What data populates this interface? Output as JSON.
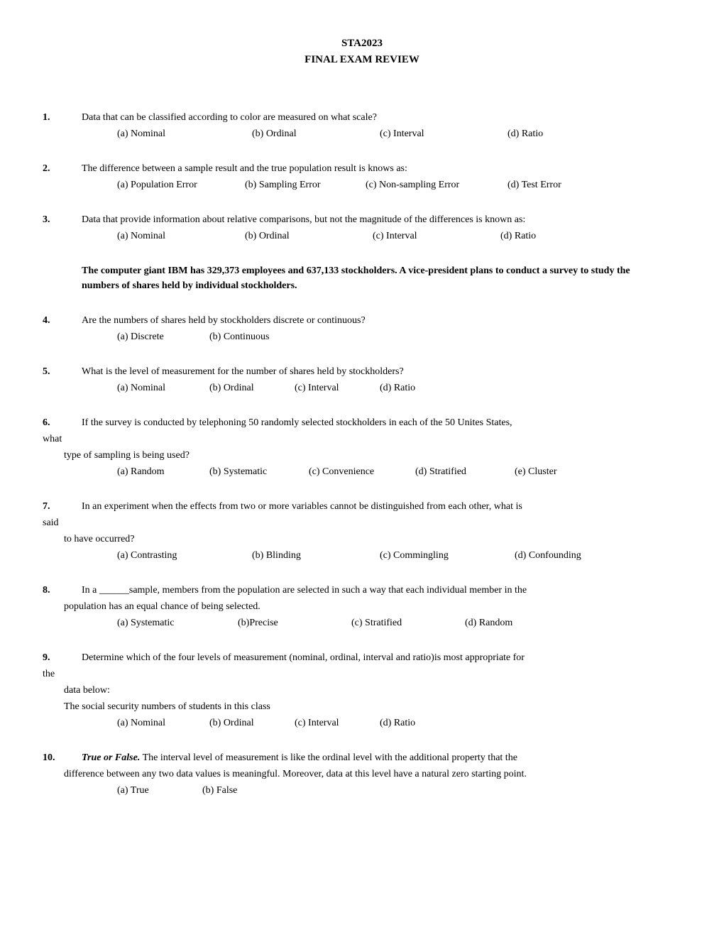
{
  "header": {
    "line1": "STA2023",
    "line2": "FINAL EXAM REVIEW"
  },
  "questions": [
    {
      "num": "1.",
      "text": "Data that can be classified according to color are measured on what scale?",
      "options": [
        "(a) Nominal",
        "(b) Ordinal",
        "(c) Interval",
        "(d) Ratio"
      ],
      "opt_widths": [
        190,
        180,
        180,
        100
      ]
    },
    {
      "num": "2.",
      "text": "The difference between a sample result and the true population result is knows as:",
      "options": [
        "(a) Population Error",
        "(b) Sampling Error",
        "(c) Non-sampling Error",
        "(d) Test Error"
      ],
      "opt_widths": [
        180,
        170,
        200,
        120
      ]
    },
    {
      "num": "3.",
      "text": "Data that provide information about relative comparisons, but not the magnitude of the differences is known as:",
      "options": [
        "(a)  Nominal",
        "(b) Ordinal",
        "(c) Interval",
        "(d) Ratio"
      ],
      "opt_widths": [
        180,
        180,
        180,
        100
      ]
    }
  ],
  "context": "The computer giant IBM has 329,373 employees and 637,133 stockholders. A vice-president plans to conduct a survey to study the numbers of shares held by individual stockholders.",
  "questions2": [
    {
      "num": "4.",
      "text": "Are the numbers of shares held by stockholders discrete or continuous?",
      "options": [
        "(a)  Discrete",
        "(b) Continuous"
      ],
      "opt_widths": [
        130,
        140
      ]
    },
    {
      "num": "5.",
      "text": "What is the level of measurement for the number of shares held by stockholders?",
      "options": [
        "(a)  Nominal",
        "(b) Ordinal",
        "(c) Interval",
        "(d) Ratio"
      ],
      "opt_widths": [
        130,
        120,
        120,
        100
      ]
    }
  ],
  "q6": {
    "num": "6.",
    "text1": "If the survey is conducted by telephoning 50 randomly selected stockholders in each of the 50 Unites States,",
    "text2": "what",
    "text3": "type of sampling is being used?",
    "options": [
      "(a)  Random",
      "(b) Systematic",
      "(c) Convenience",
      "(d) Stratified",
      "(e) Cluster"
    ],
    "opt_widths": [
      130,
      140,
      150,
      140,
      100
    ]
  },
  "q7": {
    "num": "7.",
    "text1": "In an experiment when the effects from two or more variables cannot be distinguished from each other, what is",
    "text2": "said",
    "text3": "to   have occurred?",
    "options": [
      "(a) Contrasting",
      "(b) Blinding",
      "(c) Commingling",
      "(d) Confounding"
    ],
    "opt_widths": [
      190,
      180,
      190,
      140
    ]
  },
  "q8": {
    "num": "8.",
    "text1": "In a ______sample, members from the population are selected in such a way that each individual member in the",
    "text2": "population has an equal chance of being selected.",
    "options": [
      "(a)  Systematic",
      "(b)Precise",
      "(c) Stratified",
      "(d) Random"
    ],
    "opt_widths": [
      170,
      160,
      160,
      120
    ]
  },
  "q9": {
    "num": "9.",
    "text1": "Determine which of the four levels of measurement (nominal, ordinal, interval and ratio)is most appropriate for",
    "text2": "the",
    "text3": "data below:",
    "text4": "The social security numbers of students in this class",
    "options": [
      "(a)  Nominal",
      "(b) Ordinal",
      "(c) Interval",
      "(d) Ratio"
    ],
    "opt_widths": [
      130,
      120,
      120,
      100
    ]
  },
  "q10": {
    "num": "10.",
    "prefix": "True or False.",
    "text1": "  The interval level of measurement is like the ordinal level with the additional property that the",
    "text2": "difference between any two data values is meaningful.  Moreover, data at this level have a natural zero starting point.",
    "options": [
      "(a)  True",
      "(b) False"
    ],
    "opt_widths": [
      120,
      100
    ]
  }
}
